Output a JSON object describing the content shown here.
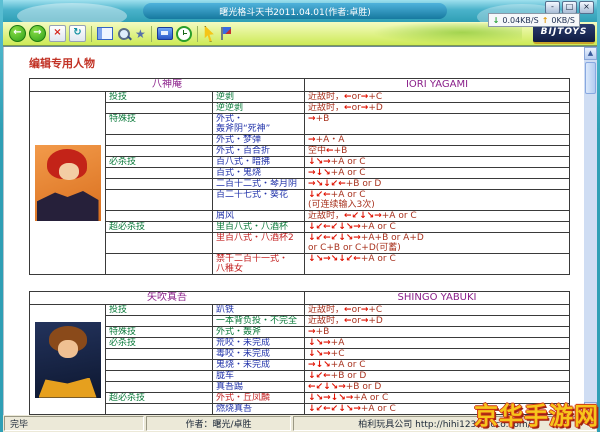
{
  "window": {
    "title": "曙光格斗天书2011.04.01(作者:卓胜)",
    "minimize": "-",
    "restore": "□",
    "close": "×"
  },
  "netspeed": {
    "down_arrow": "↓",
    "down": "0.04KB/S",
    "up_arrow": "↑",
    "up": "0KB/S"
  },
  "toolbar": {
    "logo": "BIJTOYS",
    "icons": {
      "back": "←",
      "forward": "→",
      "stop": "×",
      "refresh": "↻",
      "favorites": "★"
    }
  },
  "scrollbar": {
    "up_glyph": "▲",
    "down_glyph": "▼"
  },
  "page": {
    "heading": "编辑专用人物"
  },
  "characters": [
    {
      "name_cn": "八神庵",
      "name_en": "IORI YAGAMI",
      "portrait": "iori",
      "moves": [
        {
          "type": "投技",
          "name": "逆剥",
          "color": "green",
          "cmd": "近敌时，←or→+C"
        },
        {
          "name": "逆逆剥",
          "color": "green",
          "cmd": "近敌时，←or→+D"
        },
        {
          "type": "特殊技",
          "name": "外式・",
          "name2": "轰斧阴“死神”",
          "color": "navy",
          "cmd": "→+B"
        },
        {
          "name": "外式・梦弹",
          "color": "navy",
          "cmd": "→+A・A"
        },
        {
          "name": "外式・百合折",
          "color": "navy",
          "cmd": "空中←+B"
        },
        {
          "type": "必杀技",
          "name": "百八式・暗拂",
          "color": "navy",
          "cmd": "↓↘→+A or C"
        },
        {
          "name": "百式・鬼烧",
          "color": "navy",
          "cmd": "→↓↘+A or C"
        },
        {
          "name": "二百十二式・琴月阴",
          "color": "navy",
          "cmd": "→↘↓↙←+B or D"
        },
        {
          "name": "百二十七式・葵花",
          "color": "navy",
          "cmd": "↓↙←+A or C",
          "cmd2": "(可连续输入3次)"
        },
        {
          "name": "屑风",
          "color": "navy",
          "cmd": "近敌时，←↙↓↘→+A or C"
        },
        {
          "type": "超必杀技",
          "name": "里百八式・八酒杯",
          "color": "green",
          "cmd": "↓↙←↙↓↘→+A or C"
        },
        {
          "name": "里百八式・八酒杯2",
          "color": "red",
          "cmd": "↓↙←↙↓↘→+A+B or A+D",
          "cmd2": "or C+B or C+D(可蓄)"
        },
        {
          "name": "禁千二百十一式・",
          "name2": "八稚女",
          "color": "red",
          "cmd": "↓↘→↘↓↙←+A or C"
        }
      ]
    },
    {
      "name_cn": "矢吹真吾",
      "name_en": "SHINGO YABUKI",
      "portrait": "shingo",
      "moves": [
        {
          "type": "投技",
          "name": "趴铁",
          "color": "navy",
          "cmd": "近敌时，←or→+C"
        },
        {
          "name": "一本背负投・不完全",
          "color": "green",
          "cmd": "近敌时，←or→+D"
        },
        {
          "type": "特殊技",
          "name": "外式・轰斧",
          "color": "green",
          "cmd": "→+B"
        },
        {
          "type": "必杀技",
          "name": "荒咬・未完成",
          "color": "navy",
          "cmd": "↓↘→+A"
        },
        {
          "name": "毒咬・未完成",
          "color": "navy",
          "cmd": "↓↘→+C"
        },
        {
          "name": "鬼烧・未完成",
          "color": "navy",
          "cmd": "→↓↘+A or C"
        },
        {
          "name": "胧车",
          "color": "navy",
          "cmd": "↓↙←+B or D"
        },
        {
          "name": "真吾踢",
          "color": "navy",
          "cmd": "←↙↓↘→+B or D"
        },
        {
          "type": "超必杀技",
          "name": "外式・丘凤麟",
          "color": "red",
          "cmd": "↓↘→↓↘→+A or C"
        },
        {
          "name": "燃烧真吾",
          "color": "navy",
          "cmd": "↓↙←↙↓↘→+A or C"
        }
      ]
    }
  ],
  "statusbar": {
    "ready": "完毕",
    "author": "作者：曙光/卓胜",
    "publisher": "柏利玩具公司 http://hihi123.oncco.com/"
  },
  "watermark": "京华手游网"
}
